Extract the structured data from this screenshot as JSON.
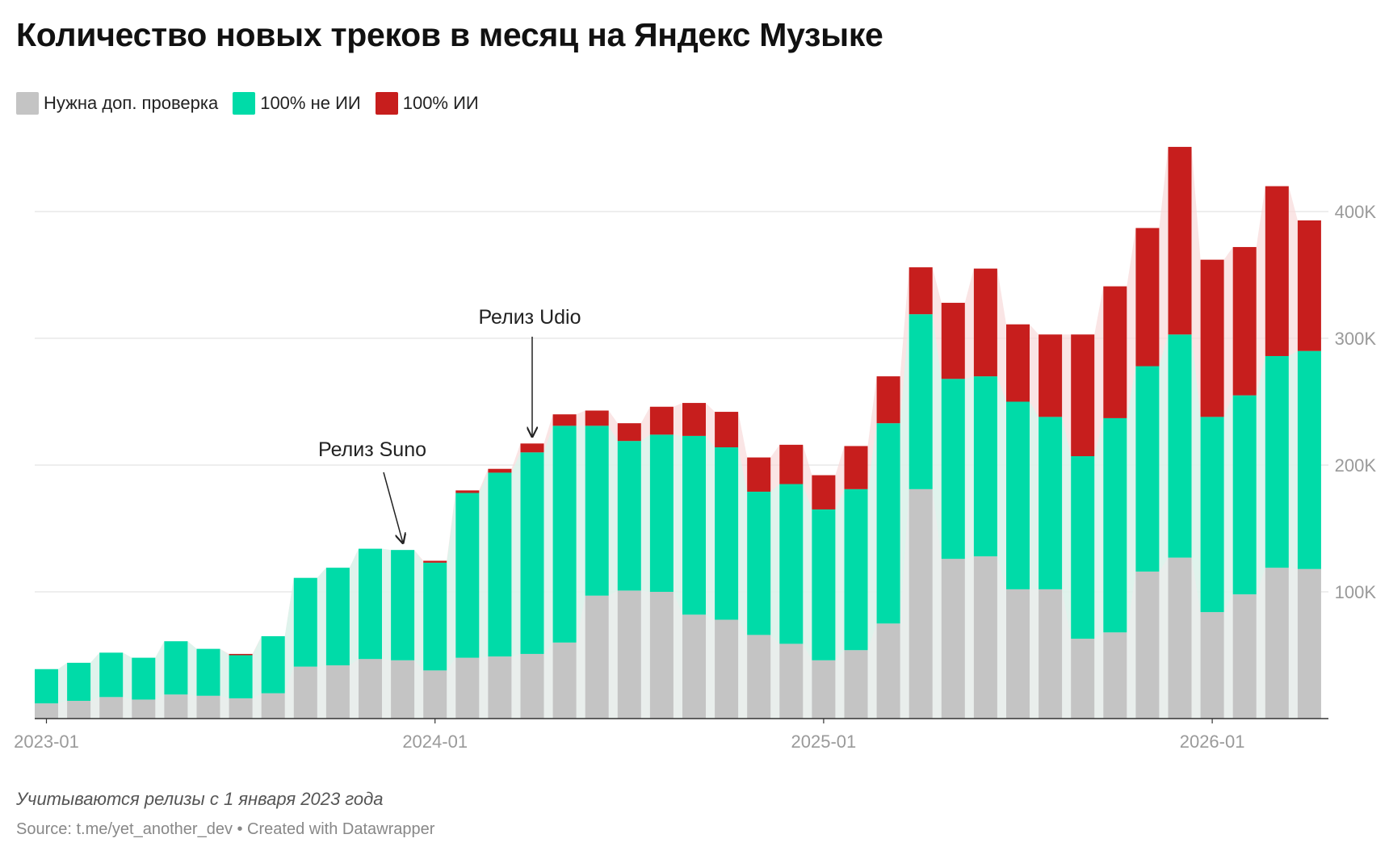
{
  "title": "Количество новых треков в месяц на Яндекс Музыке",
  "legend": [
    {
      "label": "Нужна доп. проверка",
      "color": "#c4c4c4"
    },
    {
      "label": "100% не ИИ",
      "color": "#00dba8"
    },
    {
      "label": "100% ИИ",
      "color": "#c71e1d"
    }
  ],
  "note": "Учитываются релизы с 1 января 2023 года",
  "source": "Source: t.me/yet_another_dev • Created with Datawrapper",
  "chart_data": {
    "type": "bar",
    "stacked": true,
    "categories": [
      "2023-01",
      "2023-02",
      "2023-03",
      "2023-04",
      "2023-05",
      "2023-06",
      "2023-07",
      "2023-08",
      "2023-09",
      "2023-10",
      "2023-11",
      "2023-12",
      "2024-01",
      "2024-02",
      "2024-03",
      "2024-04",
      "2024-05",
      "2024-06",
      "2024-07",
      "2024-08",
      "2024-09",
      "2024-10",
      "2024-11",
      "2024-12",
      "2025-01",
      "2025-02",
      "2025-03",
      "2025-04",
      "2025-05",
      "2025-06",
      "2025-07",
      "2025-08",
      "2025-09",
      "2025-10",
      "2025-11",
      "2025-12",
      "2026-01",
      "2026-02",
      "2026-03",
      "2026-04"
    ],
    "x_tick_labels": [
      "2023-01",
      "2024-01",
      "2025-01",
      "2026-01"
    ],
    "series": [
      {
        "name": "Нужна доп. проверка",
        "color": "#c4c4c4",
        "values": [
          12000,
          14000,
          17000,
          15000,
          19000,
          18000,
          16000,
          20000,
          41000,
          42000,
          47000,
          46000,
          38000,
          48000,
          49000,
          51000,
          60000,
          97000,
          101000,
          100000,
          82000,
          78000,
          66000,
          59000,
          46000,
          54000,
          75000,
          181000,
          126000,
          128000,
          102000,
          102000,
          63000,
          68000,
          116000,
          127000,
          84000,
          98000,
          119000,
          118000
        ]
      },
      {
        "name": "100% не ИИ",
        "color": "#00dba8",
        "values": [
          27000,
          30000,
          35000,
          33000,
          42000,
          37000,
          34000,
          45000,
          70000,
          77000,
          87000,
          87000,
          85000,
          130000,
          145000,
          159000,
          171000,
          134000,
          118000,
          124000,
          141000,
          136000,
          113000,
          126000,
          119000,
          127000,
          158000,
          138000,
          142000,
          142000,
          148000,
          136000,
          144000,
          169000,
          162000,
          176000,
          154000,
          157000,
          167000,
          172000
        ]
      },
      {
        "name": "100% ИИ",
        "color": "#c71e1d",
        "values": [
          0,
          0,
          0,
          0,
          0,
          0,
          1000,
          0,
          0,
          0,
          0,
          0,
          1500,
          2000,
          3000,
          7000,
          9000,
          12000,
          14000,
          22000,
          26000,
          28000,
          27000,
          31000,
          27000,
          34000,
          37000,
          37000,
          60000,
          85000,
          61000,
          65000,
          96000,
          104000,
          109000,
          148000,
          124000,
          117000,
          134000,
          103000
        ]
      }
    ],
    "y_ticks": [
      "100K",
      "200K",
      "300K",
      "400K"
    ],
    "ylim": [
      0,
      450000
    ],
    "y_axis_side": "right",
    "annotations": [
      {
        "text": "Релиз Suno",
        "target": "2023-12"
      },
      {
        "text": "Релиз Udio",
        "target": "2024-04"
      }
    ]
  }
}
